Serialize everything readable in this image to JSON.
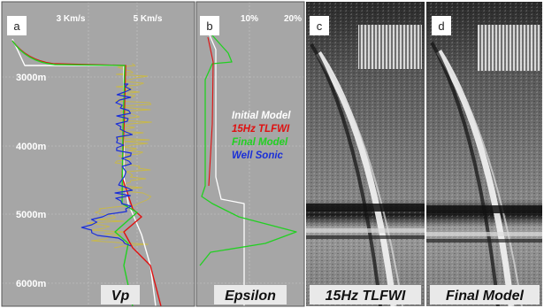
{
  "panels": [
    {
      "letter": "a",
      "title": "Vp"
    },
    {
      "letter": "b",
      "title": "Epsilon"
    },
    {
      "letter": "c",
      "title": "15Hz TLFWI"
    },
    {
      "letter": "d",
      "title": "Final Model"
    }
  ],
  "vp_axis": {
    "ticks": [
      "3 Km/s",
      "5 Km/s"
    ]
  },
  "epsilon_axis": {
    "ticks": [
      "10%",
      "20%"
    ]
  },
  "depth_axis": {
    "ticks": [
      "3000m",
      "4000m",
      "5000m",
      "6000m"
    ]
  },
  "legend": [
    {
      "label": "Initial Model",
      "color": "#ffffff"
    },
    {
      "label": "15Hz TLFWI",
      "color": "#e01010"
    },
    {
      "label": "Final Model",
      "color": "#22d022"
    },
    {
      "label": "Well Sonic",
      "color": "#1a2fd8"
    }
  ],
  "colors": {
    "well_log": "#c8b84a",
    "panel_bg": "#a6a6a6"
  }
}
